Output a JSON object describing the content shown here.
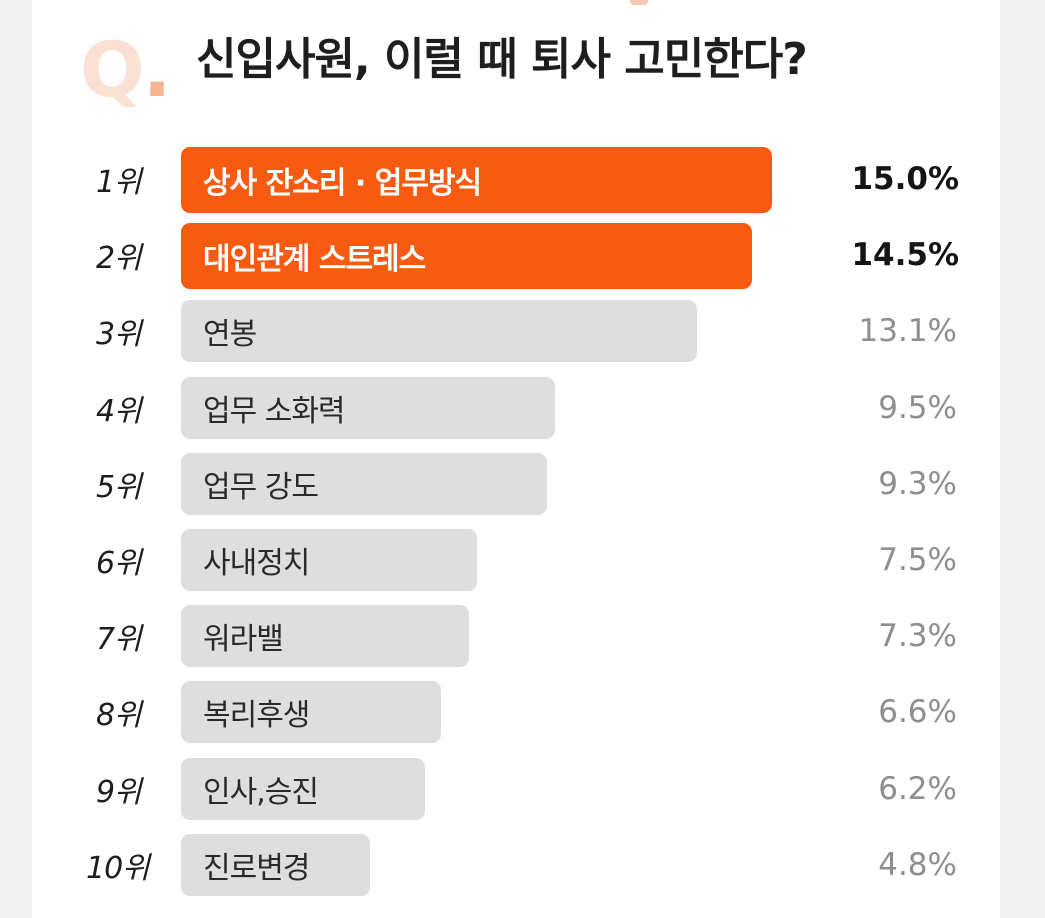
{
  "header": {
    "q_mark": "Q",
    "q_dot": ".",
    "title": "신입사원, 이럴 때 퇴사 고민한다?"
  },
  "colors": {
    "highlight_bar": "#f75b12",
    "normal_bar": "#dedede",
    "q_mark": "#fbe1d3"
  },
  "chart_data": {
    "type": "bar",
    "orientation": "horizontal",
    "title": "신입사원, 이럴 때 퇴사 고민한다?",
    "categories": [
      "상사 잔소리 · 업무방식",
      "대인관계 스트레스",
      "연봉",
      "업무 소화력",
      "업무 강도",
      "사내정치",
      "워라밸",
      "복리후생",
      "인사,승진",
      "진로변경"
    ],
    "ranks": [
      "1위",
      "2위",
      "3위",
      "4위",
      "5위",
      "6위",
      "7위",
      "8위",
      "9위",
      "10위"
    ],
    "values": [
      15.0,
      14.5,
      13.1,
      9.5,
      9.3,
      7.5,
      7.3,
      6.6,
      6.2,
      4.8
    ],
    "value_labels": [
      "15.0%",
      "14.5%",
      "13.1%",
      "9.5%",
      "9.3%",
      "7.5%",
      "7.3%",
      "6.6%",
      "6.2%",
      "4.8%"
    ],
    "highlighted": [
      true,
      true,
      false,
      false,
      false,
      false,
      false,
      false,
      false,
      false
    ],
    "xlim": [
      0,
      15.0
    ],
    "grid": false,
    "legend": "none"
  }
}
